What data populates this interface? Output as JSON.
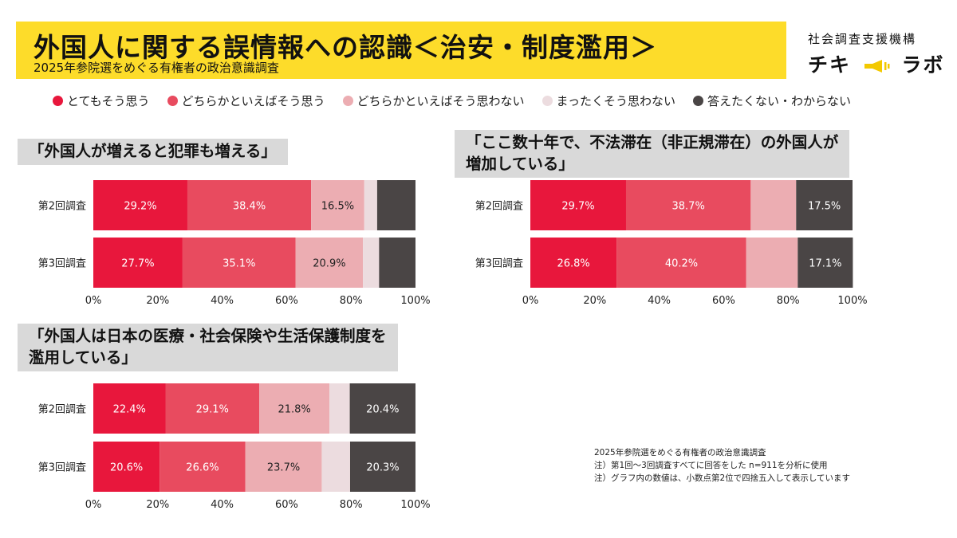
{
  "header": {
    "title": "外国人に関する誤情報への認識＜治安・制度濫用＞",
    "subtitle": "2025年参院選をめぐる有権者の政治意識調査",
    "brand_top": "社会調査支援機構",
    "brand_left": "チキ",
    "brand_right": "ラボ"
  },
  "legend": [
    {
      "label": "とてもそう思う",
      "color": "#e8173c"
    },
    {
      "label": "どちらかといえばそう思う",
      "color": "#e84b5f"
    },
    {
      "label": "どちらかといえばそう思わない",
      "color": "#ecadb2"
    },
    {
      "label": "まったくそう思わない",
      "color": "#ecdcdf"
    },
    {
      "label": "答えたくない・わからない",
      "color": "#4a4545"
    }
  ],
  "colors": [
    "#e8173c",
    "#e84b5f",
    "#ecadb2",
    "#ecdcdf",
    "#4a4545"
  ],
  "chart_data": [
    {
      "type": "bar",
      "stacked": true,
      "orientation": "horizontal",
      "title_lines": [
        "「外国人が増えると犯罪も増える」"
      ],
      "categories": [
        "第2回調査",
        "第3回調査"
      ],
      "series": [
        {
          "name": "とてもそう思う",
          "values": [
            29.2,
            27.7
          ]
        },
        {
          "name": "どちらかといえばそう思う",
          "values": [
            38.4,
            35.1
          ]
        },
        {
          "name": "どちらかといえばそう思わない",
          "values": [
            16.5,
            20.9
          ]
        },
        {
          "name": "まったくそう思わない",
          "values": [
            4.0,
            5.0
          ]
        },
        {
          "name": "答えたくない・わからない",
          "values": [
            11.9,
            11.3
          ]
        }
      ],
      "labels": [
        [
          "29.2%",
          "38.4%",
          "16.5%",
          "",
          ""
        ],
        [
          "27.7%",
          "35.1%",
          "20.9%",
          "",
          ""
        ]
      ],
      "xlim": [
        0,
        100
      ],
      "x_ticks": [
        "0%",
        "20%",
        "40%",
        "60%",
        "80%",
        "100%"
      ]
    },
    {
      "type": "bar",
      "stacked": true,
      "orientation": "horizontal",
      "title_lines": [
        "「ここ数十年で、不法滞在（非正規滞在）の外国人が",
        "増加している」"
      ],
      "categories": [
        "第2回調査",
        "第3回調査"
      ],
      "series": [
        {
          "name": "とてもそう思う",
          "values": [
            29.7,
            26.8
          ]
        },
        {
          "name": "どちらかといえばそう思う",
          "values": [
            38.7,
            40.2
          ]
        },
        {
          "name": "どちらかといえばそう思わない",
          "values": [
            14.1,
            16.0
          ]
        },
        {
          "name": "まったくそう思わない",
          "values": [
            0,
            0
          ]
        },
        {
          "name": "答えたくない・わからない",
          "values": [
            17.5,
            17.1
          ]
        }
      ],
      "labels": [
        [
          "29.7%",
          "38.7%",
          "",
          "",
          "17.5%"
        ],
        [
          "26.8%",
          "40.2%",
          "",
          "",
          "17.1%"
        ]
      ],
      "xlim": [
        0,
        100
      ],
      "x_ticks": [
        "0%",
        "20%",
        "40%",
        "60%",
        "80%",
        "100%"
      ]
    },
    {
      "type": "bar",
      "stacked": true,
      "orientation": "horizontal",
      "title_lines": [
        "「外国人は日本の医療・社会保険や生活保護制度を",
        "濫用している」"
      ],
      "categories": [
        "第2回調査",
        "第3回調査"
      ],
      "series": [
        {
          "name": "とてもそう思う",
          "values": [
            22.4,
            20.6
          ]
        },
        {
          "name": "どちらかといえばそう思う",
          "values": [
            29.1,
            26.6
          ]
        },
        {
          "name": "どちらかといえばそう思わない",
          "values": [
            21.8,
            23.7
          ]
        },
        {
          "name": "まったくそう思わない",
          "values": [
            6.3,
            8.8
          ]
        },
        {
          "name": "答えたくない・わからない",
          "values": [
            20.4,
            20.3
          ]
        }
      ],
      "labels": [
        [
          "22.4%",
          "29.1%",
          "21.8%",
          "",
          "20.4%"
        ],
        [
          "20.6%",
          "26.6%",
          "23.7%",
          "",
          "20.3%"
        ]
      ],
      "xlim": [
        0,
        100
      ],
      "x_ticks": [
        "0%",
        "20%",
        "40%",
        "60%",
        "80%",
        "100%"
      ]
    }
  ],
  "notes": [
    "2025年参院選をめぐる有権者の政治意識調査",
    "注）第1回〜3回調査すべてに回答をした n=911を分析に使用",
    "注）グラフ内の数値は、小数点第2位で四捨五入して表示しています"
  ]
}
